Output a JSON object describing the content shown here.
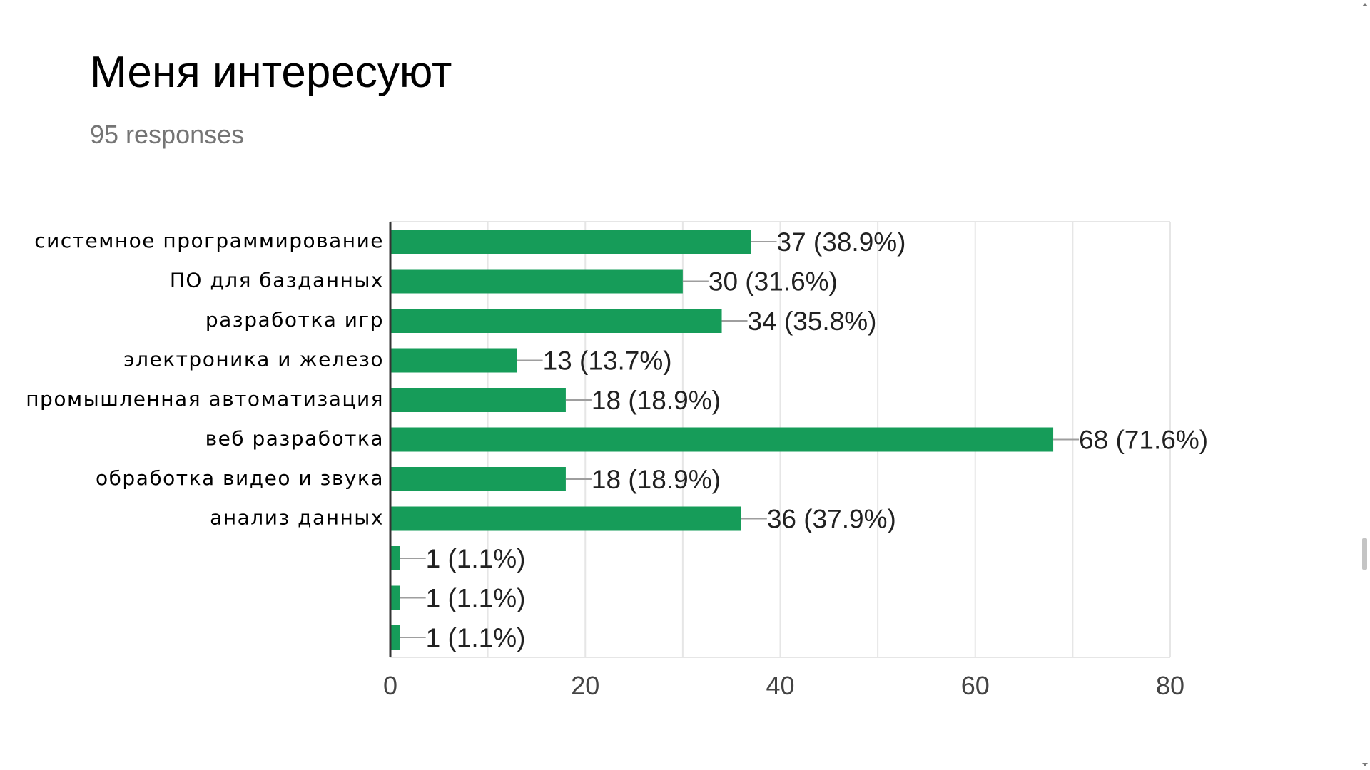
{
  "header": {
    "title": "Меня интересуют",
    "responses": "95 responses"
  },
  "colors": {
    "bar": "#169C59",
    "axis": "#333333",
    "grid": "#e6e6e6",
    "connector": "#9e9e9e",
    "label_text": "#212121",
    "tick_text": "#444444",
    "scrollbar_thumb": "#c4c4c4"
  },
  "chart_data": {
    "type": "bar",
    "orientation": "horizontal",
    "title": "Меня интересуют",
    "subtitle": "95 responses",
    "xlim": [
      0,
      80
    ],
    "x_ticks": [
      0,
      20,
      40,
      60,
      80
    ],
    "grid": true,
    "categories": [
      "системное программирование",
      "ПО для базданных",
      "разработка игр",
      "электроника и железо",
      "промышленная автоматизация",
      "веб разработка",
      "обработка видео и звука",
      "анализ данных",
      "",
      "",
      ""
    ],
    "values": [
      37,
      30,
      34,
      13,
      18,
      68,
      18,
      36,
      1,
      1,
      1
    ],
    "labels": [
      "37 (38.9%)",
      "30 (31.6%)",
      "34 (35.8%)",
      "13 (13.7%)",
      "18 (18.9%)",
      "68 (71.6%)",
      "18 (18.9%)",
      "36 (37.9%)",
      "1 (1.1%)",
      "1 (1.1%)",
      "1 (1.1%)"
    ]
  }
}
